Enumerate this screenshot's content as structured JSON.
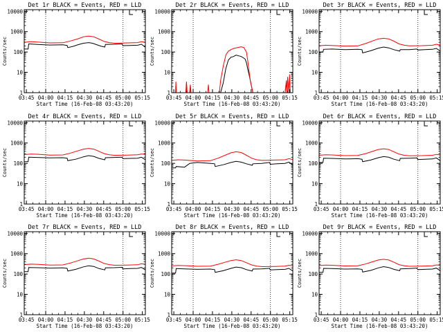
{
  "figure": {
    "x_label": "Start Time (16-Feb-08 03:43:20)",
    "y_label": "Counts/sec",
    "x_ticks": [
      "03:45",
      "04:00",
      "04:15",
      "04:30",
      "04:45",
      "05:00",
      "05:15"
    ],
    "y_ticks": [
      "1",
      "10",
      "100",
      "1000",
      "10000"
    ],
    "colors": {
      "events": "#000000",
      "lld": "#ff0000",
      "axis": "#000000",
      "background": "#ffffff"
    }
  },
  "chart_data": [
    {
      "type": "line",
      "title": "Det 1r BLACK = Events, RED = LLD",
      "xlabel": "Start Time (16-Feb-08 03:43:20)",
      "ylabel": "Counts/sec",
      "x_unit": "minutes after 03:43:20",
      "xlim": [
        0,
        94
      ],
      "ylim": [
        1,
        12000
      ],
      "y_scale": "log",
      "vlines": [
        16.67,
        76.67
      ],
      "marker": "L",
      "marker_x": 81.67,
      "series": [
        {
          "name": "Events",
          "color": "#000000",
          "x": [
            0,
            3.0,
            3.5,
            10,
            20,
            30,
            33.3,
            33.8,
            38,
            42,
            46,
            50,
            53,
            56,
            60,
            62.5,
            63,
            70,
            76,
            76.5,
            82,
            88,
            91,
            94
          ],
          "y": [
            140,
            140,
            250,
            235,
            220,
            225,
            210,
            165,
            190,
            230,
            270,
            290,
            270,
            230,
            190,
            175,
            235,
            240,
            250,
            205,
            210,
            215,
            240,
            170
          ]
        },
        {
          "name": "LLD",
          "color": "#ff0000",
          "x": [
            0,
            5,
            10,
            20,
            30,
            36,
            42,
            46,
            50,
            54,
            58,
            62,
            66,
            70,
            80,
            88,
            91,
            94
          ],
          "y": [
            300,
            320,
            310,
            280,
            285,
            350,
            450,
            560,
            610,
            560,
            430,
            330,
            290,
            270,
            280,
            290,
            320,
            300
          ]
        }
      ]
    },
    {
      "type": "line",
      "title": "Det 2r BLACK = Events, RED = LLD",
      "xlabel": "Start Time (16-Feb-08 03:43:20)",
      "ylabel": "Counts/sec",
      "x_unit": "minutes after 03:43:20",
      "xlim": [
        0,
        94
      ],
      "ylim": [
        1,
        12000
      ],
      "y_scale": "log",
      "vlines": [
        16.67,
        76.67
      ],
      "marker": "L",
      "marker_x": 81.67,
      "series": [
        {
          "name": "Events",
          "color": "#000000",
          "x": [
            11,
            11.5,
            12,
            14,
            14.5,
            15,
            38,
            40,
            42,
            44,
            46,
            48,
            50,
            52,
            54,
            56,
            57,
            58,
            59,
            60,
            61,
            62,
            63,
            88,
            89,
            90
          ],
          "y": [
            1,
            3.0,
            1,
            1,
            2.0,
            1,
            1,
            3,
            15,
            40,
            55,
            60,
            70,
            65,
            60,
            50,
            45,
            30,
            15,
            8,
            4,
            2,
            1,
            1,
            3,
            1
          ]
        },
        {
          "name": "LLD",
          "color": "#ff0000",
          "x": [
            3.0,
            3.3,
            3.6,
            11,
            11.5,
            12,
            14,
            14.5,
            15,
            28,
            28.5,
            29,
            37,
            38,
            40,
            42,
            44,
            46,
            48,
            50,
            52,
            54,
            56,
            58,
            59,
            60,
            61,
            62,
            63,
            88,
            89,
            89.5,
            90,
            91,
            91.5,
            92
          ],
          "y": [
            1,
            3.5,
            1,
            1,
            3.5,
            1,
            1,
            2.5,
            1,
            1,
            2.5,
            1,
            1,
            4,
            20,
            70,
            110,
            130,
            150,
            160,
            170,
            180,
            165,
            100,
            40,
            12,
            4,
            2,
            1,
            1,
            4,
            1,
            6,
            1,
            8,
            1
          ]
        }
      ]
    },
    {
      "type": "line",
      "title": "Det 3r BLACK = Events, RED = LLD",
      "xlabel": "Start Time (16-Feb-08 03:43:20)",
      "ylabel": "Counts/sec",
      "x_unit": "minutes after 03:43:20",
      "xlim": [
        0,
        94
      ],
      "ylim": [
        1,
        12000
      ],
      "y_scale": "log",
      "vlines": [
        16.67,
        76.67
      ],
      "marker": "L",
      "marker_x": 81.67,
      "series": [
        {
          "name": "Events",
          "color": "#000000",
          "x": [
            0,
            3.0,
            3.5,
            10,
            20,
            30,
            33.3,
            33.8,
            40,
            46,
            50,
            54,
            58,
            62.5,
            63,
            70,
            76,
            76.5,
            82,
            88,
            91,
            94
          ],
          "y": [
            100,
            100,
            135,
            140,
            130,
            135,
            130,
            90,
            115,
            155,
            175,
            160,
            130,
            110,
            130,
            130,
            140,
            125,
            130,
            135,
            150,
            110
          ]
        },
        {
          "name": "LLD",
          "color": "#ff0000",
          "x": [
            0,
            5,
            10,
            20,
            30,
            36,
            42,
            46,
            50,
            54,
            58,
            62,
            66,
            70,
            80,
            88,
            91,
            94
          ],
          "y": [
            200,
            215,
            210,
            195,
            200,
            260,
            360,
            440,
            470,
            440,
            340,
            250,
            215,
            200,
            205,
            215,
            240,
            220
          ]
        }
      ]
    },
    {
      "type": "line",
      "title": "Det 4r BLACK = Events, RED = LLD",
      "xlabel": "Start Time (16-Feb-08 03:43:20)",
      "ylabel": "Counts/sec",
      "x_unit": "minutes after 03:43:20",
      "xlim": [
        0,
        94
      ],
      "ylim": [
        1,
        12000
      ],
      "y_scale": "log",
      "vlines": [
        16.67,
        76.67
      ],
      "marker": "L",
      "marker_x": 81.67,
      "series": [
        {
          "name": "Events",
          "color": "#000000",
          "x": [
            0,
            3.0,
            3.5,
            10,
            20,
            30,
            33.3,
            33.8,
            40,
            46,
            50,
            54,
            58,
            62.5,
            63,
            70,
            76,
            76.5,
            82,
            88,
            91,
            94
          ],
          "y": [
            120,
            120,
            200,
            195,
            185,
            190,
            180,
            135,
            160,
            210,
            240,
            220,
            175,
            150,
            190,
            195,
            200,
            170,
            175,
            180,
            200,
            150
          ]
        },
        {
          "name": "LLD",
          "color": "#ff0000",
          "x": [
            0,
            5,
            10,
            20,
            30,
            36,
            42,
            46,
            50,
            54,
            58,
            62,
            66,
            70,
            80,
            88,
            91,
            94
          ],
          "y": [
            270,
            285,
            280,
            255,
            260,
            320,
            420,
            500,
            540,
            500,
            390,
            300,
            265,
            250,
            255,
            265,
            290,
            275
          ]
        }
      ]
    },
    {
      "type": "line",
      "title": "Det 5r BLACK = Events, RED = LLD",
      "xlabel": "Start Time (16-Feb-08 03:43:20)",
      "ylabel": "Counts/sec",
      "x_unit": "minutes after 03:43:20",
      "xlim": [
        0,
        94
      ],
      "ylim": [
        1,
        12000
      ],
      "y_scale": "log",
      "vlines": [
        16.67,
        76.67
      ],
      "marker": "L",
      "marker_x": 81.67,
      "series": [
        {
          "name": "Events",
          "color": "#000000",
          "x": [
            0,
            3.0,
            3.5,
            10,
            14,
            20,
            30,
            33.3,
            33.8,
            40,
            46,
            50,
            54,
            58,
            62.5,
            63,
            70,
            76,
            76.5,
            82,
            88,
            91,
            94
          ],
          "y": [
            60,
            60,
            70,
            65,
            100,
            110,
            100,
            95,
            70,
            85,
            110,
            125,
            115,
            95,
            80,
            95,
            100,
            110,
            90,
            95,
            100,
            115,
            85
          ]
        },
        {
          "name": "LLD",
          "color": "#ff0000",
          "x": [
            0,
            5,
            10,
            20,
            30,
            36,
            42,
            46,
            50,
            54,
            58,
            62,
            66,
            70,
            80,
            88,
            91,
            94
          ],
          "y": [
            140,
            150,
            145,
            130,
            135,
            180,
            260,
            330,
            370,
            340,
            250,
            180,
            150,
            140,
            145,
            150,
            170,
            155
          ]
        }
      ]
    },
    {
      "type": "line",
      "title": "Det 6r BLACK = Events, RED = LLD",
      "xlabel": "Start Time (16-Feb-08 03:43:20)",
      "ylabel": "Counts/sec",
      "x_unit": "minutes after 03:43:20",
      "xlim": [
        0,
        94
      ],
      "ylim": [
        1,
        12000
      ],
      "y_scale": "log",
      "vlines": [
        16.67,
        76.67
      ],
      "marker": "L",
      "marker_x": 81.67,
      "series": [
        {
          "name": "Events",
          "color": "#000000",
          "x": [
            0,
            3.0,
            3.5,
            10,
            20,
            30,
            33.3,
            33.8,
            40,
            46,
            50,
            54,
            58,
            62.5,
            63,
            70,
            76,
            76.5,
            82,
            88,
            91,
            94
          ],
          "y": [
            110,
            110,
            180,
            175,
            165,
            170,
            160,
            120,
            145,
            190,
            215,
            200,
            160,
            135,
            175,
            180,
            185,
            155,
            160,
            165,
            185,
            135
          ]
        },
        {
          "name": "LLD",
          "color": "#ff0000",
          "x": [
            0,
            5,
            10,
            20,
            30,
            36,
            42,
            46,
            50,
            54,
            58,
            62,
            66,
            70,
            80,
            88,
            91,
            94
          ],
          "y": [
            250,
            265,
            260,
            240,
            245,
            300,
            400,
            480,
            520,
            480,
            370,
            285,
            250,
            235,
            240,
            250,
            275,
            260
          ]
        }
      ]
    },
    {
      "type": "line",
      "title": "Det 7r BLACK = Events, RED = LLD",
      "xlabel": "Start Time (16-Feb-08 03:43:20)",
      "ylabel": "Counts/sec",
      "x_unit": "minutes after 03:43:20",
      "xlim": [
        0,
        94
      ],
      "ylim": [
        1,
        12000
      ],
      "y_scale": "log",
      "vlines": [
        16.67,
        76.67
      ],
      "marker": "L",
      "marker_x": 81.67,
      "series": [
        {
          "name": "Events",
          "color": "#000000",
          "x": [
            0,
            3.0,
            3.5,
            10,
            20,
            30,
            33.3,
            33.8,
            40,
            46,
            50,
            54,
            58,
            62.5,
            63,
            70,
            76,
            76.5,
            82,
            88,
            91,
            94
          ],
          "y": [
            130,
            130,
            210,
            205,
            195,
            200,
            190,
            140,
            170,
            225,
            255,
            235,
            185,
            160,
            200,
            205,
            215,
            180,
            185,
            190,
            210,
            160
          ]
        },
        {
          "name": "LLD",
          "color": "#ff0000",
          "x": [
            0,
            5,
            10,
            20,
            30,
            36,
            42,
            46,
            50,
            54,
            58,
            62,
            66,
            70,
            80,
            88,
            91,
            94
          ],
          "y": [
            290,
            305,
            300,
            275,
            280,
            350,
            460,
            550,
            600,
            550,
            430,
            330,
            290,
            270,
            275,
            285,
            320,
            300
          ]
        }
      ]
    },
    {
      "type": "line",
      "title": "Det 8r BLACK = Events, RED = LLD",
      "xlabel": "Start Time (16-Feb-08 03:43:20)",
      "ylabel": "Counts/sec",
      "x_unit": "minutes after 03:43:20",
      "xlim": [
        0,
        94
      ],
      "ylim": [
        1,
        12000
      ],
      "y_scale": "log",
      "vlines": [
        16.67,
        76.67
      ],
      "marker": "L",
      "marker_x": 81.67,
      "series": [
        {
          "name": "Events",
          "color": "#000000",
          "x": [
            0,
            3.0,
            3.5,
            10,
            20,
            30,
            33.3,
            33.8,
            40,
            46,
            50,
            54,
            58,
            62.5,
            63,
            70,
            76,
            76.5,
            82,
            88,
            91,
            94
          ],
          "y": [
            110,
            110,
            185,
            180,
            170,
            175,
            165,
            120,
            145,
            190,
            220,
            205,
            165,
            140,
            175,
            180,
            190,
            160,
            165,
            170,
            190,
            140
          ]
        },
        {
          "name": "LLD",
          "color": "#ff0000",
          "x": [
            0,
            5,
            10,
            20,
            30,
            36,
            42,
            46,
            50,
            54,
            58,
            62,
            66,
            70,
            80,
            88,
            91,
            94
          ],
          "y": [
            250,
            265,
            260,
            240,
            245,
            300,
            390,
            460,
            500,
            460,
            360,
            280,
            245,
            230,
            235,
            245,
            270,
            255
          ]
        }
      ]
    },
    {
      "type": "line",
      "title": "Det 9r BLACK = Events, RED = LLD",
      "xlabel": "Start Time (16-Feb-08 03:43:20)",
      "ylabel": "Counts/sec",
      "x_unit": "minutes after 03:43:20",
      "xlim": [
        0,
        94
      ],
      "ylim": [
        1,
        12000
      ],
      "y_scale": "log",
      "vlines": [
        16.67,
        76.67
      ],
      "marker": "L",
      "marker_x": 81.67,
      "series": [
        {
          "name": "Events",
          "color": "#000000",
          "x": [
            0,
            3.0,
            3.5,
            10,
            20,
            30,
            33.3,
            33.8,
            40,
            46,
            50,
            54,
            58,
            62.5,
            63,
            70,
            76,
            76.5,
            82,
            88,
            91,
            94
          ],
          "y": [
            120,
            120,
            190,
            185,
            175,
            180,
            170,
            125,
            150,
            200,
            230,
            210,
            170,
            145,
            180,
            185,
            195,
            165,
            170,
            175,
            195,
            145
          ]
        },
        {
          "name": "LLD",
          "color": "#ff0000",
          "x": [
            0,
            5,
            10,
            20,
            30,
            36,
            42,
            46,
            50,
            54,
            58,
            62,
            66,
            70,
            80,
            88,
            91,
            94
          ],
          "y": [
            260,
            275,
            270,
            250,
            255,
            310,
            410,
            490,
            530,
            490,
            380,
            290,
            255,
            240,
            245,
            255,
            280,
            265
          ]
        }
      ]
    }
  ]
}
